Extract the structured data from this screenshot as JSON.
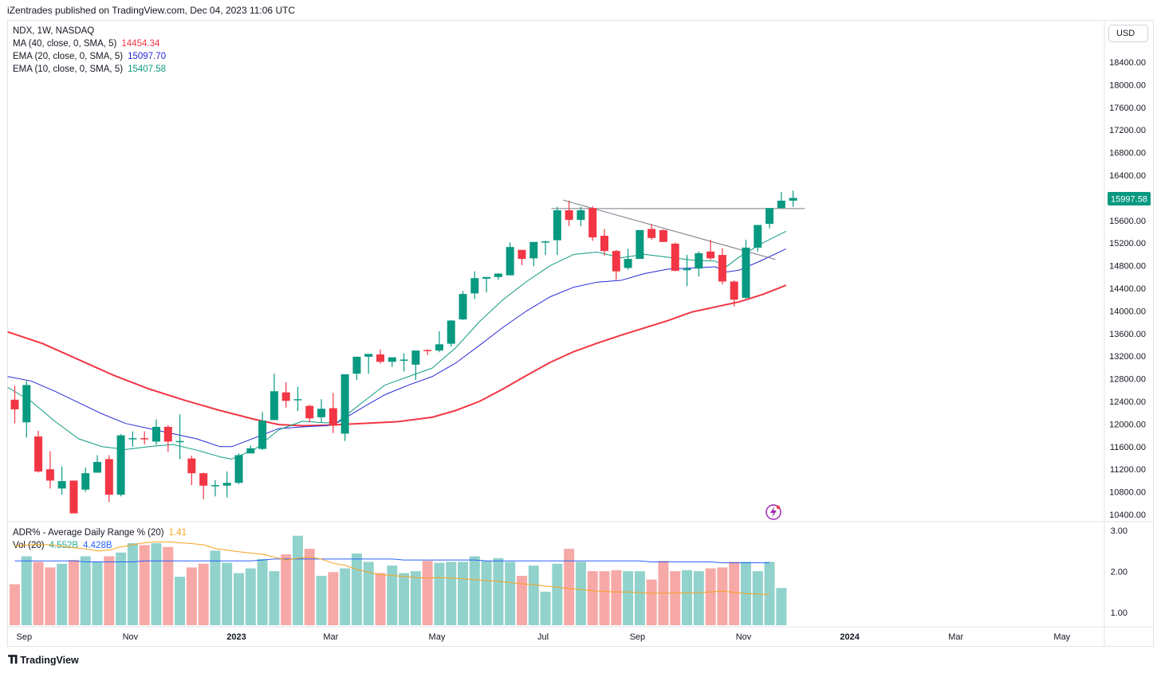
{
  "publisher_line": "iZentrades published on TradingView.com, Dec 04, 2023 11:06 UTC",
  "legend": {
    "symbol": "NDX, 1W, NASDAQ",
    "ma40": {
      "label": "MA (40, close, 0, SMA, 5)",
      "value": "14454.34",
      "color": "#f23645"
    },
    "ema20": {
      "label": "EMA (20, close, 0, SMA, 5)",
      "value": "15097.70",
      "color": "#2929d6"
    },
    "ema10": {
      "label": "EMA (10, close, 0, SMA, 5)",
      "value": "15407.58",
      "color": "#0e9a80"
    }
  },
  "sub_legend": {
    "adr": {
      "label": "ADR% - Average Daily Range % (20)",
      "value": "1.41",
      "color": "#f7a21b"
    },
    "vol": {
      "label": "Vol (20)",
      "value1": "4.552B",
      "value2": "4.428B",
      "color1": "#22ab94",
      "color2": "#2962ff"
    }
  },
  "currency_button": "USD",
  "last_price_label": "15997.58",
  "brand": "TradingView",
  "chart_data": [
    {
      "type": "candlestick",
      "symbol": "NDX",
      "interval": "1W",
      "ylim": [
        10300,
        18700
      ],
      "y_ticks": [
        "18400.00",
        "18000.00",
        "17600.00",
        "17200.00",
        "16800.00",
        "16400.00",
        "16000.00",
        "15600.00",
        "15200.00",
        "14800.00",
        "14400.00",
        "14000.00",
        "13600.00",
        "13200.00",
        "12800.00",
        "12400.00",
        "12000.00",
        "11600.00",
        "11200.00",
        "10800.00",
        "10400.00"
      ],
      "x_ticks": [
        "Sep",
        "Nov",
        "2023",
        "Mar",
        "May",
        "Jul",
        "Sep",
        "Nov",
        "2024",
        "Mar",
        "May"
      ],
      "x_tick_week_index": [
        1,
        10,
        19,
        27,
        36,
        45,
        53,
        62,
        71,
        80,
        89
      ],
      "candles": [
        [
          12430,
          12680,
          12260,
          12010
        ],
        [
          12030,
          12760,
          12690,
          11760
        ],
        [
          11780,
          11880,
          11160,
          11140
        ],
        [
          11200,
          11520,
          11000,
          10860
        ],
        [
          10860,
          11250,
          10990,
          10750
        ],
        [
          11000,
          11000,
          10420,
          10450
        ],
        [
          10840,
          11230,
          11130,
          10800
        ],
        [
          11140,
          11450,
          11330,
          11140
        ],
        [
          11380,
          11450,
          10750,
          10620
        ],
        [
          10750,
          11820,
          11800,
          10720
        ],
        [
          11730,
          11870,
          11750,
          11600
        ],
        [
          11750,
          11870,
          11740,
          11640
        ],
        [
          11690,
          12080,
          11950,
          11630
        ],
        [
          11950,
          11980,
          11690,
          11510
        ],
        [
          11700,
          12170,
          11700,
          11380
        ],
        [
          11390,
          11440,
          11130,
          10920
        ],
        [
          11130,
          11140,
          10910,
          10670
        ],
        [
          10910,
          11010,
          10920,
          10720
        ],
        [
          10910,
          11160,
          10960,
          10700
        ],
        [
          10960,
          11480,
          11450,
          10940
        ],
        [
          11480,
          11620,
          11570,
          11510
        ],
        [
          11560,
          12210,
          12060,
          11540
        ],
        [
          12070,
          12890,
          12580,
          12070
        ],
        [
          12560,
          12740,
          12410,
          12290
        ],
        [
          12420,
          12660,
          12440,
          12230
        ],
        [
          12320,
          12340,
          12100,
          12030
        ],
        [
          12120,
          12440,
          12270,
          12030
        ],
        [
          12280,
          12550,
          11970,
          11840
        ],
        [
          11830,
          12870,
          12880,
          11700
        ],
        [
          12890,
          13010,
          13190,
          12780
        ],
        [
          13190,
          13190,
          13240,
          12890
        ],
        [
          13230,
          13320,
          13100,
          13070
        ],
        [
          13100,
          13120,
          13180,
          13010
        ],
        [
          13130,
          13250,
          13140,
          12930
        ],
        [
          13050,
          13300,
          13300,
          12780
        ],
        [
          13310,
          13320,
          13300,
          13220
        ],
        [
          13300,
          13640,
          13410,
          13270
        ],
        [
          13420,
          13840,
          13830,
          13370
        ],
        [
          13850,
          14350,
          14300,
          13840
        ],
        [
          14310,
          14700,
          14580,
          14210
        ],
        [
          14570,
          14600,
          14600,
          14330
        ],
        [
          14600,
          14670,
          14660,
          14550
        ],
        [
          14630,
          15210,
          15130,
          14650
        ],
        [
          15080,
          15070,
          14920,
          14810
        ],
        [
          14930,
          15150,
          15220,
          14790
        ],
        [
          15220,
          15240,
          15230,
          14990
        ],
        [
          15250,
          15840,
          15780,
          14990
        ],
        [
          15780,
          15950,
          15610,
          15500
        ],
        [
          15610,
          15840,
          15780,
          15500
        ],
        [
          15820,
          15850,
          15300,
          15240
        ],
        [
          15330,
          15450,
          15060,
          14980
        ],
        [
          15060,
          15080,
          14700,
          14550
        ],
        [
          14760,
          15100,
          14920,
          14730
        ],
        [
          14920,
          15410,
          15430,
          14920
        ],
        [
          15450,
          15540,
          15290,
          15260
        ],
        [
          15430,
          15440,
          15220,
          15220
        ],
        [
          15190,
          15210,
          14710,
          14700
        ],
        [
          14720,
          14990,
          14750,
          14440
        ],
        [
          14750,
          15050,
          15020,
          14610
        ],
        [
          15050,
          15260,
          14930,
          14900
        ],
        [
          14990,
          15110,
          14520,
          14470
        ],
        [
          14520,
          14540,
          14200,
          14080
        ],
        [
          14230,
          15260,
          15120,
          14220
        ],
        [
          15120,
          15420,
          15520,
          15050
        ],
        [
          15540,
          15810,
          15820,
          15460
        ],
        [
          15820,
          16100,
          15950,
          15810
        ],
        [
          15950,
          16130,
          15997.58,
          15840
        ]
      ],
      "ma40": [
        [
          0,
          13630
        ],
        [
          3,
          13420
        ],
        [
          6,
          13140
        ],
        [
          9,
          12860
        ],
        [
          12,
          12620
        ],
        [
          15,
          12420
        ],
        [
          18,
          12240
        ],
        [
          21,
          12080
        ],
        [
          23,
          11990
        ],
        [
          25,
          11970
        ],
        [
          27,
          11980
        ],
        [
          28,
          11990
        ],
        [
          30,
          12010
        ],
        [
          33,
          12040
        ],
        [
          36,
          12120
        ],
        [
          38,
          12240
        ],
        [
          40,
          12400
        ],
        [
          42,
          12620
        ],
        [
          44,
          12860
        ],
        [
          46,
          13090
        ],
        [
          48,
          13280
        ],
        [
          50,
          13430
        ],
        [
          52,
          13570
        ],
        [
          54,
          13700
        ],
        [
          56,
          13830
        ],
        [
          58,
          13980
        ],
        [
          60,
          14070
        ],
        [
          62,
          14160
        ],
        [
          64,
          14290
        ],
        [
          66,
          14454.34
        ]
      ],
      "ema20": [
        [
          0,
          12840
        ],
        [
          2,
          12760
        ],
        [
          4,
          12580
        ],
        [
          6,
          12380
        ],
        [
          8,
          12180
        ],
        [
          10,
          12010
        ],
        [
          12,
          11920
        ],
        [
          14,
          11830
        ],
        [
          16,
          11740
        ],
        [
          18,
          11600
        ],
        [
          19,
          11600
        ],
        [
          21,
          11760
        ],
        [
          23,
          11920
        ],
        [
          25,
          11950
        ],
        [
          27,
          11970
        ],
        [
          28,
          12030
        ],
        [
          30,
          12280
        ],
        [
          32,
          12520
        ],
        [
          34,
          12690
        ],
        [
          36,
          12840
        ],
        [
          38,
          13080
        ],
        [
          40,
          13390
        ],
        [
          42,
          13710
        ],
        [
          44,
          14000
        ],
        [
          46,
          14250
        ],
        [
          48,
          14420
        ],
        [
          50,
          14510
        ],
        [
          52,
          14540
        ],
        [
          54,
          14660
        ],
        [
          56,
          14740
        ],
        [
          58,
          14760
        ],
        [
          60,
          14780
        ],
        [
          61,
          14690
        ],
        [
          62,
          14720
        ],
        [
          64,
          14900
        ],
        [
          66,
          15097.7
        ]
      ],
      "ema10": [
        [
          0,
          12650
        ],
        [
          2,
          12400
        ],
        [
          4,
          12050
        ],
        [
          6,
          11740
        ],
        [
          8,
          11600
        ],
        [
          10,
          11550
        ],
        [
          12,
          11600
        ],
        [
          14,
          11640
        ],
        [
          16,
          11540
        ],
        [
          18,
          11420
        ],
        [
          19,
          11380
        ],
        [
          21,
          11560
        ],
        [
          23,
          11900
        ],
        [
          25,
          12050
        ],
        [
          27,
          12020
        ],
        [
          28,
          12040
        ],
        [
          30,
          12370
        ],
        [
          32,
          12690
        ],
        [
          34,
          12840
        ],
        [
          36,
          12990
        ],
        [
          38,
          13350
        ],
        [
          40,
          13810
        ],
        [
          42,
          14200
        ],
        [
          44,
          14520
        ],
        [
          46,
          14800
        ],
        [
          48,
          15000
        ],
        [
          50,
          15040
        ],
        [
          52,
          14940
        ],
        [
          54,
          15000
        ],
        [
          56,
          14950
        ],
        [
          58,
          14900
        ],
        [
          60,
          14880
        ],
        [
          61,
          14790
        ],
        [
          62,
          14950
        ],
        [
          64,
          15200
        ],
        [
          66,
          15407.58
        ]
      ],
      "annotations": {
        "horizontal_level": {
          "value": 15810,
          "from_week": 45.5,
          "to_week": 67
        },
        "trendline": {
          "from": [
            46.5,
            15960
          ],
          "to": [
            64.5,
            14910
          ]
        }
      },
      "colors": {
        "up": "#089981",
        "down": "#f23645",
        "ma40": "#f23645",
        "ema20": "#2929d6",
        "ema10": "#0e9a80"
      }
    },
    {
      "type": "bar+line",
      "title": "ADR% - Average Daily Range % (20)",
      "ylim": [
        0.75,
        3.0
      ],
      "y_ticks": [
        "3.00",
        "2.00",
        "1.00"
      ],
      "volume_bars_normalized": [
        0.66,
        0.44,
        0.74,
        0.68,
        0.62,
        0.66,
        0.7,
        0.74,
        0.68,
        0.74,
        0.78,
        0.88,
        0.86,
        0.88,
        0.84,
        0.52,
        0.62,
        0.66,
        0.8,
        0.67,
        0.56,
        0.61,
        0.71,
        0.58,
        0.76,
        0.96,
        0.82,
        0.53,
        0.57,
        0.61,
        0.77,
        0.68,
        0.56,
        0.64,
        0.56,
        0.58,
        0.69,
        0.67,
        0.68,
        0.68,
        0.74,
        0.69,
        0.72,
        0.68,
        0.53,
        0.64,
        0.36,
        0.66,
        0.82,
        0.68,
        0.58,
        0.58,
        0.59,
        0.58,
        0.58,
        0.49,
        0.69,
        0.58,
        0.59,
        0.58,
        0.61,
        0.62,
        0.68,
        0.68,
        0.58,
        0.68,
        0.4,
        0.58
      ],
      "volume_ma_normalized": [
        0.69,
        0.69,
        0.69,
        0.69,
        0.69,
        0.69,
        0.69,
        0.68,
        0.68,
        0.68,
        0.68,
        0.68,
        0.69,
        0.69,
        0.69,
        0.69,
        0.69,
        0.69,
        0.69,
        0.69,
        0.69,
        0.69,
        0.7,
        0.71,
        0.71,
        0.71,
        0.71,
        0.71,
        0.71,
        0.71,
        0.71,
        0.71,
        0.71,
        0.71,
        0.7,
        0.7,
        0.7,
        0.7,
        0.7,
        0.7,
        0.7,
        0.69,
        0.69,
        0.69,
        0.69,
        0.69,
        0.69,
        0.69,
        0.69,
        0.69,
        0.69,
        0.69,
        0.69,
        0.69,
        0.69,
        0.68,
        0.68,
        0.68,
        0.68,
        0.68,
        0.68,
        0.67,
        0.67,
        0.67,
        0.67,
        0.67,
        0.66,
        0.66
      ],
      "adr_values": [
        2.6,
        2.62,
        2.64,
        2.66,
        2.65,
        2.62,
        2.58,
        2.55,
        2.5,
        2.52,
        2.6,
        2.65,
        2.7,
        2.72,
        2.72,
        2.7,
        2.68,
        2.65,
        2.56,
        2.52,
        2.48,
        2.45,
        2.42,
        2.35,
        2.28,
        2.32,
        2.35,
        2.3,
        2.2,
        2.15,
        2.05,
        1.98,
        1.92,
        1.9,
        1.88,
        1.85,
        1.84,
        1.85,
        1.84,
        1.82,
        1.8,
        1.78,
        1.76,
        1.73,
        1.7,
        1.68,
        1.64,
        1.62,
        1.58,
        1.56,
        1.53,
        1.51,
        1.5,
        1.5,
        1.48,
        1.47,
        1.47,
        1.47,
        1.48,
        1.48,
        1.5,
        1.52,
        1.49,
        1.46,
        1.45,
        1.44,
        1.42,
        1.41
      ]
    }
  ]
}
